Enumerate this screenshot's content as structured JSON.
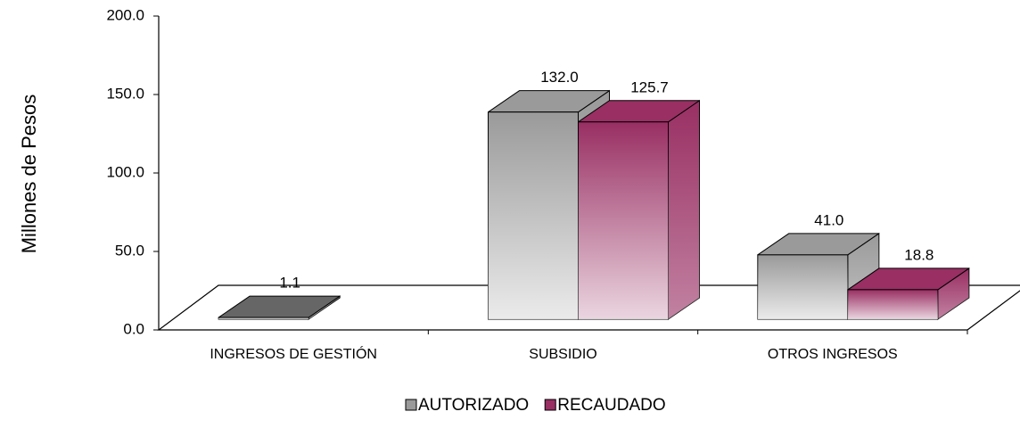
{
  "chart_data": {
    "type": "bar3d",
    "y_label": "Millones de Pesos",
    "categories": [
      "INGRESOS DE GESTIÓN",
      "SUBSIDIO",
      "OTROS INGRESOS"
    ],
    "series": [
      {
        "name": "AUTORIZADO",
        "color": "#9a9a9a",
        "values": [
          1.1,
          132.0,
          41.0
        ],
        "value_labels": [
          "1.1",
          "132.0",
          "41.0"
        ]
      },
      {
        "name": "RECAUDADO",
        "color": "#992f63",
        "values": [
          null,
          125.7,
          18.8
        ],
        "value_labels": [
          null,
          "125.7",
          "18.8"
        ]
      }
    ],
    "ylim": [
      0,
      200
    ],
    "yticks": [
      {
        "value": 0,
        "label": "0.0"
      },
      {
        "value": 50,
        "label": "50.0"
      },
      {
        "value": 100,
        "label": "100.0"
      },
      {
        "value": 150,
        "label": "150.0"
      },
      {
        "value": 200,
        "label": "200.0"
      }
    ],
    "legend": "bottom"
  }
}
